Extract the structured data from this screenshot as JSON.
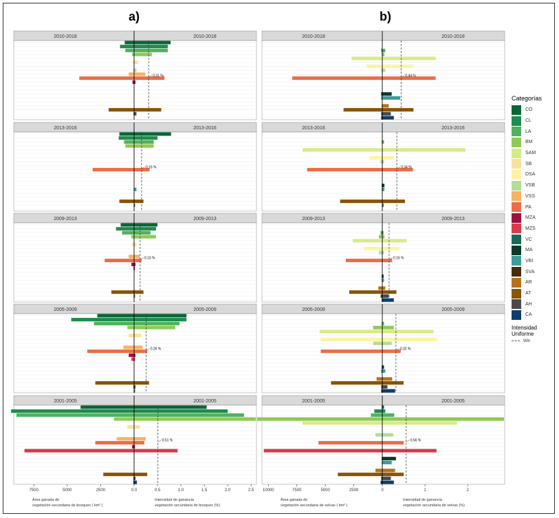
{
  "titles": {
    "a": "a)",
    "b": "b)"
  },
  "legend": {
    "title": "Categorías",
    "items": [
      {
        "label": "CO",
        "color": "#0a6637"
      },
      {
        "label": "CL",
        "color": "#1e8c4e"
      },
      {
        "label": "LA",
        "color": "#4fb25c"
      },
      {
        "label": "BM",
        "color": "#90c955"
      },
      {
        "label": "SAM",
        "color": "#d7ea8b"
      },
      {
        "label": "SB",
        "color": "#fae199"
      },
      {
        "label": "DSA",
        "color": "#fdf3a5"
      },
      {
        "label": "VSB",
        "color": "#b3dd9a"
      },
      {
        "label": "VSS",
        "color": "#f6b266"
      },
      {
        "label": "PA",
        "color": "#ec6c48"
      },
      {
        "label": "MZA",
        "color": "#9e0f3e"
      },
      {
        "label": "MZS",
        "color": "#d73b4c"
      },
      {
        "label": "VC",
        "color": "#17695a"
      },
      {
        "label": "MA",
        "color": "#0d3a2d"
      },
      {
        "label": "VBI",
        "color": "#3b9c9a"
      },
      {
        "label": "SVA",
        "color": "#4a2a0d"
      },
      {
        "label": "AR",
        "color": "#b5721d"
      },
      {
        "label": "AT",
        "color": "#8b5400"
      },
      {
        "label": "AH",
        "color": "#4a4a4a"
      },
      {
        "label": "CA",
        "color": "#0e3d6e"
      }
    ],
    "intensity_title": "Intensidad Uniforme",
    "intensity_item": "Win"
  },
  "chart_data": [
    {
      "type": "bar",
      "panel": "a",
      "title": "a)",
      "left_xlabel": [
        "Área ganada de",
        "vegetación secundaria de bosques ( km² )"
      ],
      "right_xlabel": [
        "Intensidad de ganancia",
        "vegetación secundaria de bosques (%)"
      ],
      "left_ticks": [
        "7500",
        "5000",
        "2500",
        "0.0"
      ],
      "right_ticks": [
        "0.0",
        "0.5",
        "1.0",
        "1.5",
        "2.0",
        "2.5"
      ],
      "left_max": 9000,
      "right_max": 2.6,
      "categories": [
        "CO",
        "CL",
        "LA",
        "BM",
        "SAM",
        "SB",
        "DSA",
        "VSB",
        "VSS",
        "PA",
        "MZA",
        "MZS",
        "VC",
        "MA",
        "VBI",
        "SVA",
        "AR",
        "AT",
        "AH",
        "CA"
      ],
      "facets": [
        {
          "label": "2010-2018",
          "win": 0.31,
          "win_label": "0.31 %",
          "area": {
            "CO": 700,
            "CL": 1050,
            "LA": 650,
            "BM": 150,
            "SB": 80,
            "VSB": 50,
            "VSS": 400,
            "PA": 4100,
            "MZA": 120,
            "AT": 1900,
            "AH": 40
          },
          "intensity": {
            "CO": 0.78,
            "CL": 0.72,
            "LA": 0.72,
            "BM": 0.38,
            "SB": 0.08,
            "VSB": 0.05,
            "VSS": 0.24,
            "PA": 0.65,
            "MZA": 0.03,
            "AT": 0.58,
            "AH": 0.05
          }
        },
        {
          "label": "2013-2016",
          "win": 0.16,
          "win_label": "0.16 %",
          "area": {
            "CO": 1100,
            "CL": 1150,
            "LA": 750,
            "BM": 650,
            "PA": 3100,
            "VBI": 20,
            "AT": 1100,
            "AH": 10
          },
          "intensity": {
            "CO": 0.79,
            "CL": 0.5,
            "LA": 0.42,
            "BM": 0.42,
            "PA": 0.33,
            "VBI": 0.05,
            "AT": 0.2,
            "AH": 0.02
          }
        },
        {
          "label": "2009-2013",
          "win": 0.13,
          "win_label": "0.13 %",
          "area": {
            "CO": 1000,
            "CL": 1350,
            "LA": 900,
            "BM": 200,
            "SB": 150,
            "VSS": 400,
            "PA": 2200,
            "MZA": 200,
            "MZS": 50,
            "AT": 1700,
            "AH": 30
          },
          "intensity": {
            "CO": 0.5,
            "CL": 0.47,
            "LA": 0.35,
            "BM": 0.47,
            "SB": 0.05,
            "VSS": 0.12,
            "PA": 0.16,
            "MZA": 0.03,
            "MZS": 0.02,
            "AT": 0.2,
            "AH": 0.02
          }
        },
        {
          "label": "2005-2009",
          "win": 0.26,
          "win_label": "0.26 %",
          "area": {
            "CO": 2750,
            "CL": 4700,
            "LA": 3000,
            "BM": 500,
            "SB": 400,
            "VSS": 800,
            "PA": 3500,
            "MZA": 400,
            "MZS": 200,
            "AT": 2900,
            "AH": 50,
            "CA": 20
          },
          "intensity": {
            "CO": 1.12,
            "CL": 1.12,
            "LA": 0.97,
            "BM": 0.88,
            "SB": 0.15,
            "VSS": 0.18,
            "PA": 0.28,
            "MZA": 0.03,
            "MZS": 0.02,
            "AT": 0.32,
            "AH": 0.03,
            "CA": 0.02
          }
        },
        {
          "label": "2001-2005",
          "win": 0.51,
          "win_label": "0.51 %",
          "area": {
            "CO": 4000,
            "CL": 9200,
            "LA": 8800,
            "BM": 1500,
            "SB": 500,
            "VSS": 1300,
            "PA": 2900,
            "MZA": 150,
            "MZS": 8200,
            "AT": 2300,
            "AH": 50,
            "CA": 50
          },
          "intensity": {
            "CO": 1.55,
            "CL": 2.0,
            "LA": 2.35,
            "BM": 2.6,
            "SB": 0.12,
            "VSS": 0.25,
            "PA": 0.22,
            "MZA": 0.02,
            "MZS": 0.93,
            "AT": 0.28,
            "AH": 0.03,
            "CA": 0.06
          }
        }
      ]
    },
    {
      "type": "bar",
      "panel": "b",
      "title": "b)",
      "left_xlabel": [
        "Área ganada de",
        "vegetación secundaria de selvas ( km² )"
      ],
      "right_xlabel": [
        "Intensidad de ganancia",
        "vegetación secundaria de selvas (%)"
      ],
      "left_ticks": [
        "10000",
        "7500",
        "5000",
        "2500",
        "0"
      ],
      "right_ticks": [
        "0",
        "1",
        "2"
      ],
      "left_max": 10500,
      "right_max": 2.85,
      "categories": [
        "CO",
        "CL",
        "LA",
        "BM",
        "SAM",
        "SB",
        "DSA",
        "VSB",
        "VSS",
        "PA",
        "MZA",
        "MZS",
        "VC",
        "MA",
        "VBI",
        "SVA",
        "AR",
        "AT",
        "AH",
        "CA"
      ],
      "facets": [
        {
          "label": "2010-2018",
          "win": 0.44,
          "win_label": "0.44 %",
          "area": {
            "LA": 100,
            "BM": 50,
            "SAM": 2700,
            "DSA": 1400,
            "VSB": 100,
            "PA": 7900,
            "MA": 100,
            "VBI": 100,
            "AR": 50,
            "AT": 3400,
            "AH": 100,
            "CA": 100
          },
          "intensity": {
            "LA": 0.07,
            "BM": 0.05,
            "SAM": 1.25,
            "DSA": 0.72,
            "VSB": 0.07,
            "PA": 1.25,
            "MA": 0.22,
            "VBI": 0.42,
            "AR": 0.15,
            "AT": 0.73,
            "AH": 0.2,
            "CA": 0.27
          }
        },
        {
          "label": "2013-2016",
          "win": 0.34,
          "win_label": "0.34 %",
          "area": {
            "LA": 50,
            "SAM": 7000,
            "DSA": 1100,
            "VSB": 150,
            "PA": 6600,
            "MA": 50,
            "VBI": 50,
            "AT": 3700,
            "AH": 20
          },
          "intensity": {
            "LA": 0.04,
            "SAM": 1.95,
            "DSA": 0.28,
            "VSB": 0.04,
            "PA": 0.72,
            "MA": 0.05,
            "VBI": 0.05,
            "AT": 0.53,
            "AH": 0.03
          }
        },
        {
          "label": "2009-2013",
          "win": 0.16,
          "win_label": "0.16 %",
          "area": {
            "LA": 150,
            "BM": 300,
            "SAM": 2600,
            "DSA": 1600,
            "VSB": 300,
            "PA": 3200,
            "MA": 50,
            "VBI": 50,
            "AR": 350,
            "AT": 2900,
            "AH": 150,
            "CA": 50
          },
          "intensity": {
            "LA": 0.03,
            "BM": 0.05,
            "SAM": 0.57,
            "DSA": 0.4,
            "VSB": 0.04,
            "PA": 0.23,
            "MA": 0.03,
            "VBI": 0.04,
            "AR": 0.07,
            "AT": 0.33,
            "AH": 0.15,
            "CA": 0.27
          }
        },
        {
          "label": "2005-2009",
          "win": 0.32,
          "win_label": "0.32 %",
          "area": {
            "LA": 50,
            "BM": 800,
            "SAM": 5500,
            "DSA": 5400,
            "VSB": 800,
            "PA": 5400,
            "MA": 50,
            "VBI": 100,
            "AR": 500,
            "AT": 4500,
            "AH": 100,
            "CA": 100
          },
          "intensity": {
            "LA": 0.04,
            "BM": 0.27,
            "SAM": 1.2,
            "DSA": 1.28,
            "VSB": 0.22,
            "PA": 0.43,
            "MA": 0.04,
            "VBI": 0.07,
            "AR": 0.23,
            "AT": 0.5,
            "AH": 0.12,
            "CA": 0.3
          }
        },
        {
          "label": "2001-2005",
          "win": 0.56,
          "win_label": "0.56 %",
          "area": {
            "CO": 50,
            "CL": 700,
            "LA": 1000,
            "BM": 11000,
            "SAM": 7000,
            "VSB": 600,
            "PA": 5600,
            "MZS": 10400,
            "MA": 50,
            "VBI": 50,
            "AR": 600,
            "AT": 3900,
            "AH": 100,
            "CA": 150
          },
          "intensity": {
            "CO": 0.04,
            "CL": 0.07,
            "LA": 0.28,
            "BM": 2.85,
            "SAM": 1.75,
            "VSB": 0.26,
            "PA": 0.5,
            "MZS": 1.27,
            "MA": 0.32,
            "VBI": 0.22,
            "AR": 0.3,
            "AT": 0.5,
            "AH": 0.2,
            "CA": 0.27
          }
        }
      ]
    }
  ]
}
